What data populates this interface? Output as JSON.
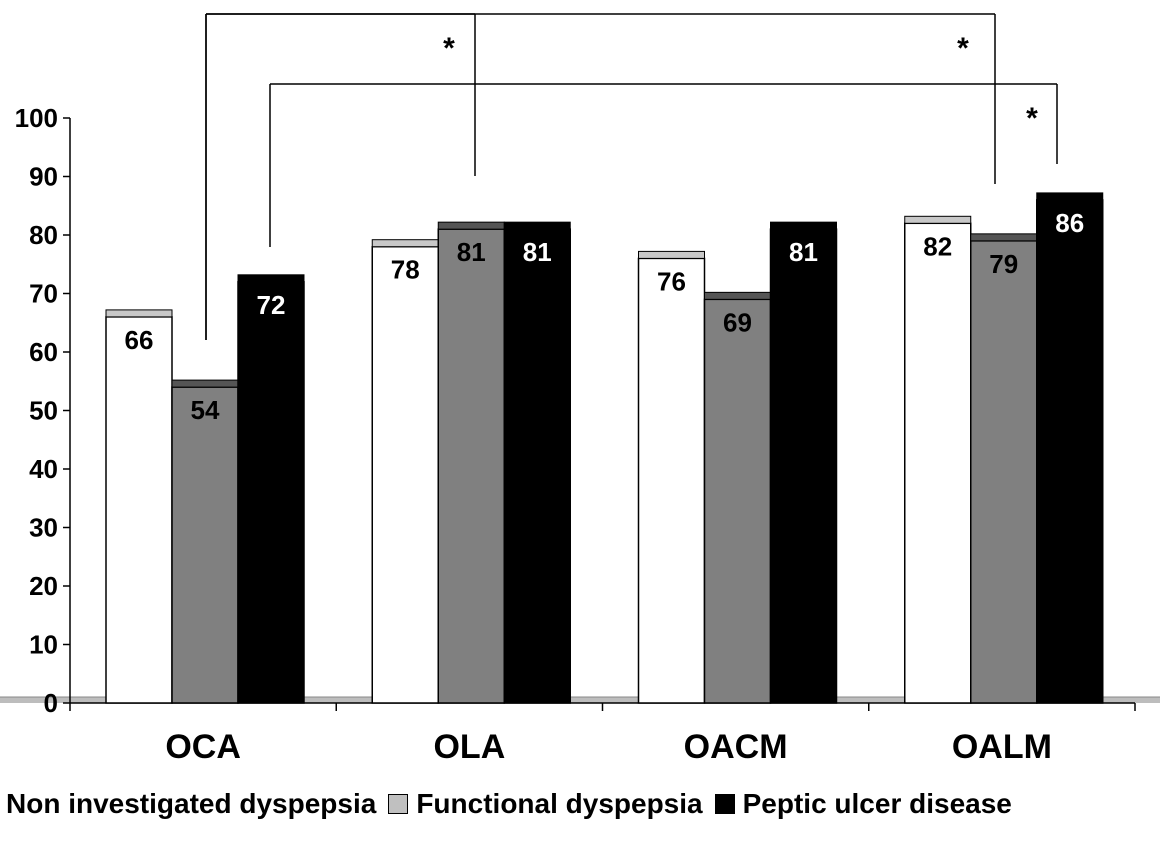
{
  "chart_data": {
    "type": "bar",
    "title": "",
    "xlabel": "",
    "ylabel": "",
    "categories": [
      "OCA",
      "OLA",
      "OACM",
      "OALM"
    ],
    "series": [
      {
        "name": "Non investigated dyspepsia",
        "values": [
          66,
          78,
          76,
          82
        ],
        "color": "#ffffff",
        "label_color": "#000000"
      },
      {
        "name": "Functional dyspepsia",
        "values": [
          54,
          81,
          69,
          79
        ],
        "color": "#808080",
        "label_color": "#000000"
      },
      {
        "name": "Peptic ulcer disease",
        "values": [
          72,
          81,
          81,
          86
        ],
        "color": "#000000",
        "label_color": "#ffffff"
      }
    ],
    "ylim": [
      0,
      100
    ],
    "yticks": [
      0,
      10,
      20,
      30,
      40,
      50,
      60,
      70,
      80,
      90,
      100
    ],
    "grid": false,
    "legend_position": "bottom",
    "significance_brackets": [
      {
        "from_category": "OCA",
        "from_series": "Functional dyspepsia",
        "to_category": "OLA",
        "to_series": "Functional dyspepsia",
        "label": "*"
      },
      {
        "from_category": "OCA",
        "from_series": "Functional dyspepsia",
        "to_category": "OALM",
        "to_series": "Functional dyspepsia",
        "label": "*"
      },
      {
        "from_category": "OCA",
        "from_series": "Peptic ulcer disease",
        "to_category": "OALM",
        "to_series": "Peptic ulcer disease",
        "label": "*"
      }
    ]
  },
  "legend": {
    "items": [
      {
        "label": "Non investigated dyspepsia",
        "color": "#ffffff",
        "show_swatch": false
      },
      {
        "label": "Functional dyspepsia",
        "color": "#c0c0c0",
        "show_swatch": true
      },
      {
        "label": "Peptic ulcer disease",
        "color": "#000000",
        "show_swatch": true
      }
    ]
  }
}
